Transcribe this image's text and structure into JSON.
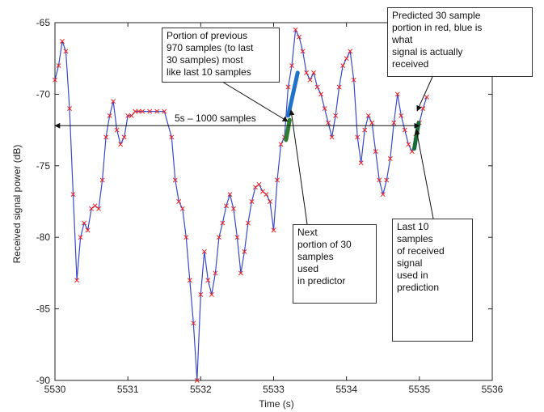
{
  "chart_data": {
    "type": "line",
    "xlabel": "Time (s)",
    "ylabel": "Received signal power (dB)",
    "xlim": [
      5530,
      5536
    ],
    "ylim": [
      -90,
      -65
    ],
    "xticks": [
      5530,
      5531,
      5532,
      5533,
      5534,
      5535,
      5536
    ],
    "yticks": [
      -90,
      -85,
      -80,
      -75,
      -70,
      -65
    ],
    "xtick_labels": [
      "5530",
      "5531",
      "5532",
      "5533",
      "5534",
      "5535",
      "5536"
    ],
    "ytick_labels": [
      "-90",
      "-85",
      "-80",
      "-75",
      "-70",
      "-65"
    ],
    "grid": false,
    "series": [
      {
        "style": "blue line with red x markers",
        "color": "#3a49c8",
        "marker_color": "#ee2222",
        "x": [
          5530.0,
          5530.05,
          5530.1,
          5530.15,
          5530.2,
          5530.25,
          5530.3,
          5530.35,
          5530.4,
          5530.45,
          5530.5,
          5530.55,
          5530.6,
          5530.65,
          5530.7,
          5530.75,
          5530.8,
          5530.85,
          5530.9,
          5530.95,
          5531.0,
          5531.05,
          5531.1,
          5531.15,
          5531.2,
          5531.3,
          5531.4,
          5531.5,
          5531.6,
          5531.65,
          5531.7,
          5531.75,
          5531.8,
          5531.85,
          5531.9,
          5531.95,
          5532.0,
          5532.05,
          5532.1,
          5532.15,
          5532.2,
          5532.25,
          5532.3,
          5532.35,
          5532.4,
          5532.45,
          5532.5,
          5532.55,
          5532.6,
          5532.65,
          5532.7,
          5532.75,
          5532.8,
          5532.85,
          5532.9,
          5532.95,
          5533.0,
          5533.05,
          5533.1,
          5533.15,
          5533.2,
          5533.25,
          5533.3,
          5533.35,
          5533.4,
          5533.45,
          5533.5,
          5533.55,
          5533.6,
          5533.65,
          5533.7,
          5533.75,
          5533.8,
          5533.85,
          5533.9,
          5533.95,
          5534.0,
          5534.05,
          5534.1,
          5534.15,
          5534.2,
          5534.25,
          5534.3,
          5534.35,
          5534.4,
          5534.45,
          5534.5,
          5534.55,
          5534.6,
          5534.65,
          5534.7,
          5534.75,
          5534.8,
          5534.85,
          5534.9,
          5534.95,
          5535.0,
          5535.05,
          5535.1
        ],
        "y": [
          -69,
          -68,
          -66.3,
          -67,
          -71,
          -77,
          -83,
          -80,
          -79,
          -79.5,
          -78,
          -77.8,
          -78,
          -76,
          -73,
          -71.5,
          -70.5,
          -72.5,
          -73.5,
          -73,
          -71.5,
          -71.5,
          -71.2,
          -71.2,
          -71.2,
          -71.2,
          -71.2,
          -71.2,
          -73,
          -76,
          -77.5,
          -78,
          -80,
          -83,
          -86,
          -90,
          -84,
          -81,
          -83,
          -84,
          -82.5,
          -80,
          -79,
          -77.8,
          -77,
          -78,
          -80,
          -82.5,
          -81,
          -79,
          -77.5,
          -76.5,
          -76.3,
          -76.8,
          -77,
          -77.5,
          -79.5,
          -76,
          -73.5,
          -73,
          -69.5,
          -68,
          -65.5,
          -66,
          -67,
          -68.5,
          -69,
          -68.5,
          -69.5,
          -70,
          -71,
          -72,
          -73,
          -71.5,
          -69.5,
          -68,
          -67.5,
          -67,
          -69,
          -73,
          -74.8,
          -72.5,
          -71.5,
          -72,
          -74,
          -76,
          -77,
          -76,
          -74.5,
          -72,
          -70,
          -71.5,
          -72.5,
          -73.5,
          -74,
          -73,
          -72,
          -71,
          -70.2
        ]
      }
    ],
    "highlights": [
      {
        "name": "portion of previous samples",
        "color": "#1f73c8",
        "x": [
          5533.2,
          5533.33
        ],
        "y": [
          -71.5,
          -68.5
        ]
      },
      {
        "name": "next portion of 30 samples",
        "color": "#2e7d2e",
        "x": [
          5533.17,
          5533.22
        ],
        "y": [
          -73.2,
          -71.8
        ]
      },
      {
        "name": "last 10 samples",
        "color": "#1a6b3a",
        "x": [
          5534.93,
          5534.99
        ],
        "y": [
          -73.8,
          -72
        ]
      }
    ],
    "span": {
      "x": [
        5530,
        5535
      ],
      "y": -72.2,
      "label": "5s – 1000 samples"
    }
  },
  "annotations": [
    {
      "id": "box-previous",
      "text": "Portion of previous\n970 samples (to last\n30 samples) most\nlike last 10 samples"
    },
    {
      "id": "box-predicted",
      "text": "Predicted 30 sample\nportion in red, blue is\nwhat\nsignal is actually\nreceived"
    },
    {
      "id": "box-next",
      "text": "Next\nportion of 30\nsamples\nused\nin predictor"
    },
    {
      "id": "box-last10",
      "text": "Last 10\nsamples\nof received\nsignal\nused in\nprediction"
    }
  ]
}
